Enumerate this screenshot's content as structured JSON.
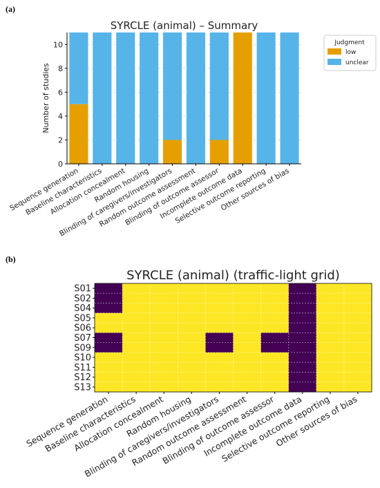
{
  "panels": {
    "a": "(a)",
    "b": "(b)"
  },
  "colors": {
    "low": "#E69F00",
    "unclear": "#56B4E9",
    "grid_high": "#440154",
    "grid_low": "#FDE725"
  },
  "chart_data": [
    {
      "type": "bar",
      "stacked": true,
      "title": "SYRCLE (animal) – Summary",
      "xlabel": "",
      "ylabel": "Number of studies",
      "ylim": [
        0,
        11
      ],
      "yticks": [
        0,
        2,
        4,
        6,
        8,
        10
      ],
      "grid": "y-dashed",
      "legend": {
        "title": "Judgment",
        "placement": "right"
      },
      "categories": [
        "Sequence generation",
        "Baseline characteristics",
        "Allocation concealment",
        "Random housing",
        "Blinding of caregivers/investigators",
        "Random outcome assessment",
        "Blinding of outcome assessor",
        "Incomplete outcome data",
        "Selective outcome reporting",
        "Other sources of bias"
      ],
      "series": [
        {
          "name": "low",
          "values": [
            5,
            0,
            0,
            0,
            2,
            0,
            2,
            11,
            0,
            0
          ]
        },
        {
          "name": "unclear",
          "values": [
            6,
            11,
            11,
            11,
            9,
            11,
            9,
            0,
            11,
            11
          ]
        }
      ]
    },
    {
      "type": "heatmap",
      "title": "SYRCLE (animal) (traffic-light grid)",
      "columns": [
        "Sequence generation",
        "Baseline characteristics",
        "Allocation concealment",
        "Random housing",
        "Blinding of caregivers/investigators",
        "Random outcome assessment",
        "Blinding of outcome assessor",
        "Incomplete outcome data",
        "Selective outcome reporting",
        "Other sources of bias"
      ],
      "rows": [
        "S01",
        "S02",
        "S04",
        "S05",
        "S06",
        "S07",
        "S09",
        "S10",
        "S11",
        "S12",
        "S13"
      ],
      "values": [
        [
          1,
          0,
          0,
          0,
          0,
          0,
          0,
          1,
          0,
          0
        ],
        [
          1,
          0,
          0,
          0,
          0,
          0,
          0,
          1,
          0,
          0
        ],
        [
          1,
          0,
          0,
          0,
          0,
          0,
          0,
          1,
          0,
          0
        ],
        [
          0,
          0,
          0,
          0,
          0,
          0,
          0,
          1,
          0,
          0
        ],
        [
          0,
          0,
          0,
          0,
          0,
          0,
          0,
          1,
          0,
          0
        ],
        [
          1,
          0,
          0,
          0,
          1,
          0,
          1,
          1,
          0,
          0
        ],
        [
          1,
          0,
          0,
          0,
          1,
          0,
          1,
          1,
          0,
          0
        ],
        [
          0,
          0,
          0,
          0,
          0,
          0,
          0,
          1,
          0,
          0
        ],
        [
          0,
          0,
          0,
          0,
          0,
          0,
          0,
          1,
          0,
          0
        ],
        [
          0,
          0,
          0,
          0,
          0,
          0,
          0,
          1,
          0,
          0
        ],
        [
          0,
          0,
          0,
          0,
          0,
          0,
          0,
          1,
          0,
          0
        ]
      ],
      "grid": true
    }
  ]
}
